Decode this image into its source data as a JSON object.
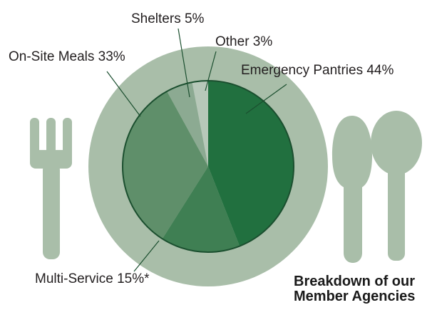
{
  "chart_data": {
    "type": "pie",
    "title_lines": [
      "Breakdown of our",
      "Member Agencies"
    ],
    "slices": [
      {
        "label": "Emergency Pantries 44%",
        "value": 44,
        "color": "#21703f"
      },
      {
        "label": "Multi-Service 15%*",
        "value": 15,
        "color": "#3f7f53"
      },
      {
        "label": "On-Site Meals 33%",
        "value": 33,
        "color": "#5f8f6a"
      },
      {
        "label": "Shelters 5%",
        "value": 5,
        "color": "#8caa92"
      },
      {
        "label": "Other 3%",
        "value": 3,
        "color": "#b7c8b9"
      }
    ],
    "colors": {
      "plate": "#a9bea9",
      "utensils": "#a9bea9",
      "rim": "#1b4f2f",
      "label_text": "#231f20"
    }
  }
}
